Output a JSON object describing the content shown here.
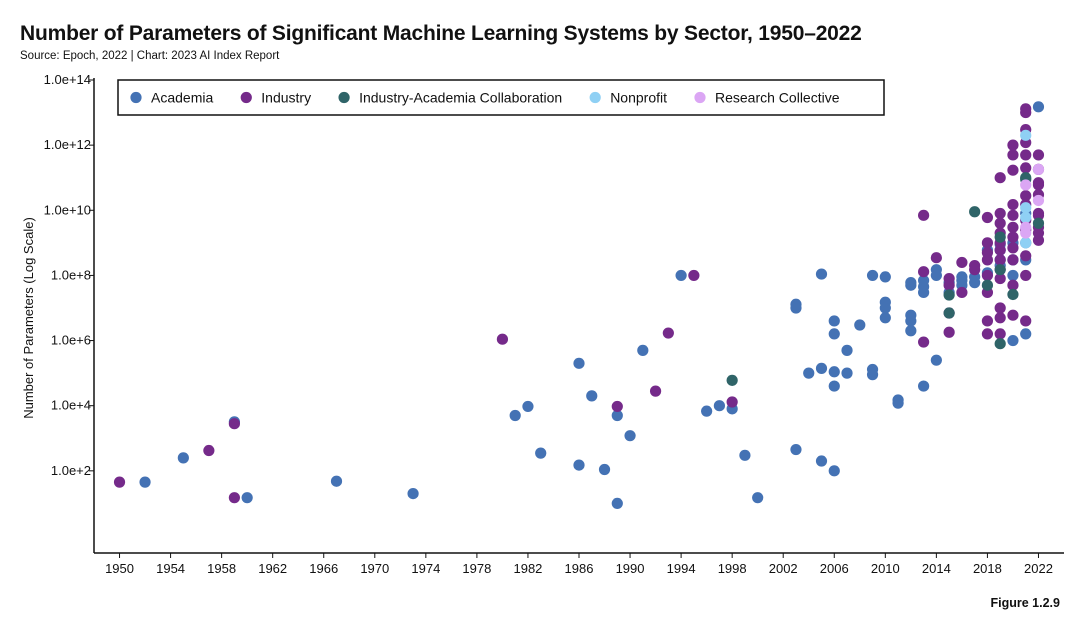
{
  "header": {
    "title": "Number of Parameters of Significant Machine Learning Systems by Sector, 1950–2022",
    "source": "Source: Epoch, 2022 | Chart: 2023 AI Index Report"
  },
  "footer": {
    "figure": "Figure 1.2.9"
  },
  "colors": {
    "Academia": "#4472b4",
    "Industry": "#752a8a",
    "Industry-Academia Collaboration": "#2f6468",
    "Nonprofit": "#8fd0f4",
    "Research Collective": "#dba6f4"
  },
  "chart_data": {
    "type": "scatter",
    "title": "Number of Parameters of Significant Machine Learning Systems by Sector, 1950–2022",
    "xlabel": "",
    "ylabel": "Number of Parameters (Log Scale)",
    "yscale": "log",
    "xlim": [
      1948,
      2024
    ],
    "ylim": [
      0.3,
      100000000000000.0
    ],
    "x_ticks": [
      1950,
      1954,
      1958,
      1962,
      1966,
      1970,
      1974,
      1978,
      1982,
      1986,
      1990,
      1994,
      1998,
      2002,
      2006,
      2010,
      2014,
      2018,
      2022
    ],
    "y_ticks": [
      {
        "value": 100,
        "label": "1.0e+2"
      },
      {
        "value": 10000,
        "label": "1.0e+4"
      },
      {
        "value": 1000000,
        "label": "1.0e+6"
      },
      {
        "value": 100000000,
        "label": "1.0e+8"
      },
      {
        "value": 10000000000,
        "label": "1.0e+10"
      },
      {
        "value": 1000000000000,
        "label": "1.0e+12"
      },
      {
        "value": 100000000000000,
        "label": "1.0e+14"
      }
    ],
    "legend_position": "top-left",
    "grid": false,
    "series": [
      {
        "name": "Academia",
        "points": [
          [
            1952,
            45
          ],
          [
            1955,
            250
          ],
          [
            1959,
            3200
          ],
          [
            1960,
            15
          ],
          [
            1967,
            48
          ],
          [
            1973,
            20
          ],
          [
            1981,
            5000
          ],
          [
            1982,
            9500
          ],
          [
            1983,
            350
          ],
          [
            1986,
            200000
          ],
          [
            1986,
            150
          ],
          [
            1987,
            20000
          ],
          [
            1988,
            110
          ],
          [
            1989,
            10
          ],
          [
            1989,
            5000
          ],
          [
            1990,
            1200
          ],
          [
            1991,
            500000
          ],
          [
            1994,
            100000000.0
          ],
          [
            1996,
            6800
          ],
          [
            1997,
            10000
          ],
          [
            1998,
            8000
          ],
          [
            1999,
            300
          ],
          [
            2000,
            15
          ],
          [
            2003,
            450
          ],
          [
            2003,
            10000000.0
          ],
          [
            2003,
            13000000.0
          ],
          [
            2004,
            100000
          ],
          [
            2005,
            140000
          ],
          [
            2005,
            200
          ],
          [
            2005,
            110000000.0
          ],
          [
            2006,
            100
          ],
          [
            2006,
            40000
          ],
          [
            2006,
            110000
          ],
          [
            2006,
            1600000.0
          ],
          [
            2006,
            4000000.0
          ],
          [
            2007,
            500000
          ],
          [
            2007,
            100000
          ],
          [
            2008,
            3000000.0
          ],
          [
            2009,
            90000
          ],
          [
            2009,
            130000
          ],
          [
            2009,
            100000000.0
          ],
          [
            2010,
            5000000.0
          ],
          [
            2010,
            10000000.0
          ],
          [
            2010,
            15000000.0
          ],
          [
            2010,
            90000000.0
          ],
          [
            2011,
            15000
          ],
          [
            2011,
            12000
          ],
          [
            2012,
            2000000.0
          ],
          [
            2012,
            4000000.0
          ],
          [
            2012,
            6000000.0
          ],
          [
            2012,
            50000000.0
          ],
          [
            2012,
            60000000.0
          ],
          [
            2013,
            40000
          ],
          [
            2013,
            30000000.0
          ],
          [
            2013,
            45000000.0
          ],
          [
            2013,
            70000000.0
          ],
          [
            2014,
            250000
          ],
          [
            2014,
            100000000.0
          ],
          [
            2014,
            150000000.0
          ],
          [
            2015,
            30000000.0
          ],
          [
            2015,
            60000000.0
          ],
          [
            2016,
            50000000.0
          ],
          [
            2016,
            70000000.0
          ],
          [
            2016,
            90000000.0
          ],
          [
            2017,
            60000000.0
          ],
          [
            2017,
            90000000.0
          ],
          [
            2018,
            120000000.0
          ],
          [
            2018,
            600000000.0
          ],
          [
            2019,
            200000000.0
          ],
          [
            2019,
            300000000.0
          ],
          [
            2019,
            600000000.0
          ],
          [
            2019,
            900000000.0
          ],
          [
            2020,
            1000000.0
          ],
          [
            2020,
            100000000.0
          ],
          [
            2020,
            300000000.0
          ],
          [
            2020,
            1000000000.0
          ],
          [
            2021,
            1600000.0
          ],
          [
            2021,
            300000000.0
          ],
          [
            2021,
            1000000000.0
          ],
          [
            2021,
            8000000000.0
          ],
          [
            2022,
            15000000000000.0
          ]
        ]
      },
      {
        "name": "Industry",
        "points": [
          [
            1950,
            45
          ],
          [
            1957,
            420
          ],
          [
            1959,
            15
          ],
          [
            1959,
            2800
          ],
          [
            1980,
            1100000.0
          ],
          [
            1989,
            9500
          ],
          [
            1992,
            28000
          ],
          [
            1993,
            1700000.0
          ],
          [
            1995,
            100000000.0
          ],
          [
            1998,
            13000
          ],
          [
            2013,
            900000
          ],
          [
            2013,
            7000000000.0
          ],
          [
            2013,
            130000000.0
          ],
          [
            2014,
            350000000.0
          ],
          [
            2015,
            1800000.0
          ],
          [
            2015,
            7000000.0
          ],
          [
            2015,
            50000000.0
          ],
          [
            2015,
            80000000.0
          ],
          [
            2016,
            250000000.0
          ],
          [
            2016,
            30000000.0
          ],
          [
            2017,
            200000000.0
          ],
          [
            2017,
            150000000.0
          ],
          [
            2018,
            4000000.0
          ],
          [
            2018,
            1600000.0
          ],
          [
            2018,
            30000000.0
          ],
          [
            2018,
            100000000.0
          ],
          [
            2018,
            500000000.0
          ],
          [
            2018,
            1000000000.0
          ],
          [
            2018,
            300000000.0
          ],
          [
            2018,
            6000000000.0
          ],
          [
            2019,
            1600000.0
          ],
          [
            2019,
            5000000.0
          ],
          [
            2019,
            10000000.0
          ],
          [
            2019,
            80000000.0
          ],
          [
            2019,
            150000000.0
          ],
          [
            2019,
            300000000.0
          ],
          [
            2019,
            600000000.0
          ],
          [
            2019,
            1000000000.0
          ],
          [
            2019,
            2000000000.0
          ],
          [
            2019,
            4000000000.0
          ],
          [
            2019,
            100000000000.0
          ],
          [
            2019,
            8000000000.0
          ],
          [
            2020,
            6000000.0
          ],
          [
            2020,
            50000000.0
          ],
          [
            2020,
            300000000.0
          ],
          [
            2020,
            700000000.0
          ],
          [
            2020,
            1500000000.0
          ],
          [
            2020,
            3000000000.0
          ],
          [
            2020,
            7000000000.0
          ],
          [
            2020,
            15000000000.0
          ],
          [
            2020,
            170000000000.0
          ],
          [
            2020,
            500000000000.0
          ],
          [
            2020,
            1000000000000.0
          ],
          [
            2021,
            4000000.0
          ],
          [
            2021,
            100000000.0
          ],
          [
            2021,
            400000000.0
          ],
          [
            2021,
            2500000000.0
          ],
          [
            2021,
            5000000000.0
          ],
          [
            2021,
            15000000000.0
          ],
          [
            2021,
            28000000000.0
          ],
          [
            2021,
            200000000000.0
          ],
          [
            2021,
            500000000000.0
          ],
          [
            2021,
            1200000000000.0
          ],
          [
            2021,
            3000000000000.0
          ],
          [
            2021,
            10000000000000.0
          ],
          [
            2021,
            13000000000000.0
          ],
          [
            2022,
            1200000000.0
          ],
          [
            2022,
            2000000000.0
          ],
          [
            2022,
            3000000000.0
          ],
          [
            2022,
            7000000000.0
          ],
          [
            2022,
            8000000000.0
          ],
          [
            2022,
            30000000000.0
          ],
          [
            2022,
            60000000000.0
          ],
          [
            2022,
            180000000000.0
          ],
          [
            2022,
            500000000000.0
          ],
          [
            2022,
            70000000000.0
          ]
        ]
      },
      {
        "name": "Industry-Academia Collaboration",
        "points": [
          [
            1998,
            60000
          ],
          [
            2015,
            7000000.0
          ],
          [
            2015,
            25000000.0
          ],
          [
            2017,
            9000000000.0
          ],
          [
            2018,
            50000000.0
          ],
          [
            2019,
            800000.0
          ],
          [
            2019,
            150000000.0
          ],
          [
            2019,
            1500000000.0
          ],
          [
            2020,
            26000000.0
          ],
          [
            2021,
            100000000000.0
          ],
          [
            2021,
            90000000000.0
          ],
          [
            2022,
            4000000000.0
          ]
        ]
      },
      {
        "name": "Nonprofit",
        "points": [
          [
            2021,
            1000000000.0
          ],
          [
            2021,
            12000000000.0
          ],
          [
            2021,
            6000000000.0
          ],
          [
            2021,
            2000000000000.0
          ]
        ]
      },
      {
        "name": "Research Collective",
        "points": [
          [
            2021,
            2000000000.0
          ],
          [
            2021,
            3000000000.0
          ],
          [
            2021,
            60000000000.0
          ],
          [
            2022,
            20000000000.0
          ],
          [
            2022,
            180000000000.0
          ]
        ]
      }
    ]
  }
}
